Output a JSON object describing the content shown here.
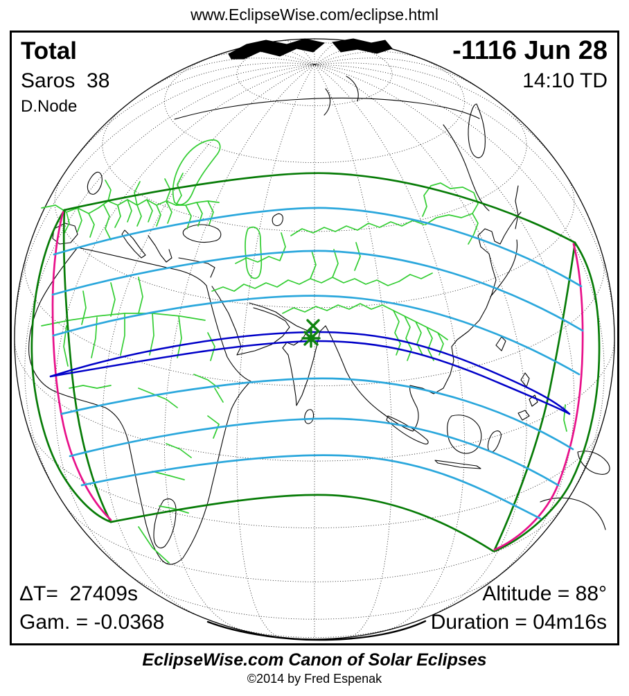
{
  "header": {
    "url": "www.EclipseWise.com/eclipse.html"
  },
  "eclipse": {
    "type_label": "Total",
    "saros_label": "Saros  38",
    "node_label": "D.Node",
    "date_label": "-1116 Jun 28",
    "time_label": "14:10 TD",
    "delta_t_label": "ΔT=  27409s",
    "gamma_label": "Gam. = -0.0368",
    "altitude_label": "Altitude = 88°",
    "duration_label": "Duration = 04m16s"
  },
  "footer": {
    "title": "EclipseWise.com Canon of Solar Eclipses",
    "copyright": "©2014 by Fred Espenak"
  },
  "map": {
    "colors": {
      "frame": "#000000",
      "coastline": "#000000",
      "graticule": "#000000",
      "country_border": "#32CD32",
      "penumbral_limit": "#067B06",
      "magnitude_contour": "#2AA7DC",
      "central_path": "#0000C8",
      "rise_set_curve": "#E8108A",
      "marker_green": "#0E830E"
    },
    "markers": [
      {
        "name": "greatest-duration-marker",
        "symbol": "x-cross"
      },
      {
        "name": "greatest-eclipse-marker",
        "symbol": "asterisk-star"
      }
    ]
  }
}
